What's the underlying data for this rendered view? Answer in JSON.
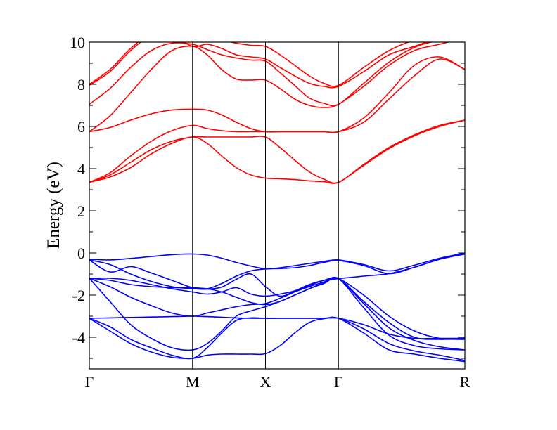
{
  "chart_data": {
    "type": "line",
    "title": "",
    "xlabel": "",
    "ylabel": "Energy (eV)",
    "ylim": [
      -5.5,
      10
    ],
    "yticks": [
      "-4",
      "-2",
      "0",
      "2",
      "4",
      "6",
      "8",
      "10"
    ],
    "ytick_values": [
      -4,
      -2,
      0,
      2,
      4,
      6,
      8,
      10
    ],
    "k_points": [
      {
        "label": "Γ",
        "x": 0
      },
      {
        "label": "M",
        "x": 0.707
      },
      {
        "label": "X",
        "x": 1.207
      },
      {
        "label": "Γ",
        "x": 1.707
      },
      {
        "label": "R",
        "x": 2.573
      }
    ],
    "grid": false,
    "legend": "none",
    "colors": {
      "valence": "#0000ff",
      "conduction": "#ff0000",
      "axis": "#000000"
    },
    "x": [
      0,
      0.141,
      0.283,
      0.424,
      0.566,
      0.707,
      0.807,
      0.907,
      1.007,
      1.107,
      1.207,
      1.307,
      1.407,
      1.507,
      1.607,
      1.707,
      1.88,
      2.053,
      2.227,
      2.4,
      2.573
    ],
    "series": [
      {
        "group": "valence",
        "values": [
          -0.3,
          -0.33,
          -0.26,
          -0.17,
          -0.08,
          -0.05,
          -0.1,
          -0.25,
          -0.45,
          -0.62,
          -0.75,
          -0.7,
          -0.6,
          -0.5,
          -0.4,
          -0.33,
          -0.55,
          -0.85,
          -0.58,
          -0.25,
          0.0
        ]
      },
      {
        "group": "valence",
        "values": [
          -0.33,
          -0.9,
          -0.65,
          -0.95,
          -1.3,
          -1.65,
          -1.7,
          -1.45,
          -1.1,
          -0.85,
          -0.76,
          -0.74,
          -0.7,
          -0.6,
          -0.45,
          -0.36,
          -0.6,
          -0.98,
          -0.68,
          -0.3,
          -0.05
        ]
      },
      {
        "group": "valence",
        "values": [
          -0.33,
          -0.55,
          -1.0,
          -1.35,
          -1.6,
          -1.7,
          -1.72,
          -1.62,
          -1.25,
          -1.0,
          -1.6,
          -2.05,
          -1.8,
          -1.5,
          -1.3,
          -1.22,
          -1.1,
          -0.98,
          -0.68,
          -0.3,
          -0.05
        ]
      },
      {
        "group": "valence",
        "values": [
          -1.2,
          -1.2,
          -1.3,
          -1.5,
          -1.7,
          -1.85,
          -1.95,
          -1.85,
          -1.65,
          -1.95,
          -2.05,
          -1.95,
          -1.8,
          -1.55,
          -1.3,
          -1.22,
          -2.0,
          -3.0,
          -3.7,
          -4.05,
          -4.1
        ]
      },
      {
        "group": "valence",
        "values": [
          -1.2,
          -1.3,
          -1.5,
          -1.6,
          -1.65,
          -1.65,
          -1.7,
          -1.85,
          -2.1,
          -2.35,
          -2.45,
          -2.3,
          -2.0,
          -1.7,
          -1.45,
          -1.22,
          -2.3,
          -3.3,
          -4.0,
          -4.1,
          -4.05
        ]
      },
      {
        "group": "valence",
        "values": [
          -1.2,
          -1.6,
          -2.1,
          -2.5,
          -2.85,
          -3.0,
          -2.85,
          -2.7,
          -2.55,
          -2.45,
          -2.4,
          -2.15,
          -1.85,
          -1.6,
          -1.38,
          -1.22,
          -2.4,
          -3.55,
          -4.15,
          -4.45,
          -4.6
        ]
      },
      {
        "group": "valence",
        "values": [
          -1.2,
          -2.3,
          -3.4,
          -4.05,
          -4.5,
          -4.6,
          -4.3,
          -3.7,
          -3.0,
          -2.75,
          -2.55,
          -2.3,
          -2.0,
          -1.7,
          -1.42,
          -1.22,
          -2.6,
          -3.9,
          -4.4,
          -4.55,
          -4.6
        ]
      },
      {
        "group": "valence",
        "values": [
          -3.1,
          -3.08,
          -3.06,
          -3.04,
          -3.02,
          -3.0,
          -3.02,
          -3.05,
          -3.08,
          -3.1,
          -3.1,
          -3.1,
          -3.1,
          -3.1,
          -3.1,
          -3.1,
          -3.4,
          -3.85,
          -4.05,
          -4.05,
          -4.05
        ]
      },
      {
        "group": "valence",
        "values": [
          -3.1,
          -3.5,
          -4.1,
          -4.5,
          -4.85,
          -5.0,
          -4.5,
          -3.8,
          -3.2,
          -3.08,
          -3.1,
          -3.1,
          -3.1,
          -3.1,
          -3.1,
          -3.1,
          -3.6,
          -4.3,
          -4.65,
          -4.85,
          -5.1
        ]
      },
      {
        "group": "valence",
        "values": [
          -3.1,
          -3.7,
          -4.3,
          -4.7,
          -4.95,
          -5.0,
          -4.85,
          -4.8,
          -4.8,
          -4.8,
          -4.78,
          -4.4,
          -3.8,
          -3.3,
          -3.12,
          -3.1,
          -3.8,
          -4.6,
          -4.8,
          -5.0,
          -5.15
        ]
      },
      {
        "group": "conduction",
        "values": [
          3.35,
          3.7,
          4.3,
          4.9,
          5.3,
          5.5,
          5.5,
          5.5,
          5.5,
          5.5,
          5.5,
          5.0,
          4.4,
          3.85,
          3.5,
          3.35,
          4.2,
          5.0,
          5.6,
          6.05,
          6.3
        ]
      },
      {
        "group": "conduction",
        "values": [
          3.35,
          3.6,
          4.05,
          4.7,
          5.2,
          5.5,
          5.2,
          4.6,
          4.05,
          3.7,
          3.55,
          3.52,
          3.48,
          3.42,
          3.38,
          3.35,
          4.15,
          4.95,
          5.55,
          6.0,
          6.3
        ]
      },
      {
        "group": "conduction",
        "values": [
          3.35,
          3.8,
          4.6,
          5.3,
          5.8,
          6.05,
          5.9,
          5.8,
          5.75,
          5.75,
          5.75,
          5.75,
          5.75,
          5.75,
          5.75,
          5.75,
          6.2,
          7.3,
          8.4,
          9.2,
          8.7
        ]
      },
      {
        "group": "conduction",
        "values": [
          5.75,
          5.95,
          6.3,
          6.6,
          6.78,
          6.82,
          6.78,
          6.55,
          6.2,
          5.9,
          5.75,
          5.75,
          5.75,
          5.75,
          5.75,
          5.75,
          6.4,
          7.6,
          8.9,
          9.3,
          8.7
        ]
      },
      {
        "group": "conduction",
        "values": [
          5.75,
          6.5,
          7.6,
          8.7,
          9.6,
          9.8,
          9.4,
          8.7,
          8.25,
          8.2,
          8.2,
          7.8,
          7.3,
          7.0,
          6.9,
          7.05,
          7.9,
          8.9,
          9.6,
          9.9,
          10.2
        ]
      },
      {
        "group": "conduction",
        "values": [
          7.05,
          7.8,
          8.8,
          9.6,
          9.95,
          9.9,
          9.65,
          9.4,
          9.25,
          9.15,
          9.1,
          8.55,
          7.95,
          7.35,
          7.1,
          7.05,
          8.05,
          9.05,
          9.75,
          10.1,
          10.3
        ]
      },
      {
        "group": "conduction",
        "values": [
          7.95,
          8.6,
          9.6,
          10.3,
          10.3,
          9.8,
          9.9,
          9.7,
          9.4,
          9.3,
          9.2,
          8.8,
          8.4,
          8.05,
          7.9,
          7.9,
          8.6,
          9.4,
          9.8,
          10.2,
          10.4
        ]
      },
      {
        "group": "conduction",
        "values": [
          8.0,
          8.7,
          9.7,
          10.4,
          10.4,
          10.1,
          10.2,
          10.1,
          9.95,
          9.85,
          9.8,
          9.4,
          8.9,
          8.4,
          8.05,
          7.95,
          8.8,
          9.6,
          10.1,
          10.4,
          10.5
        ]
      }
    ]
  }
}
